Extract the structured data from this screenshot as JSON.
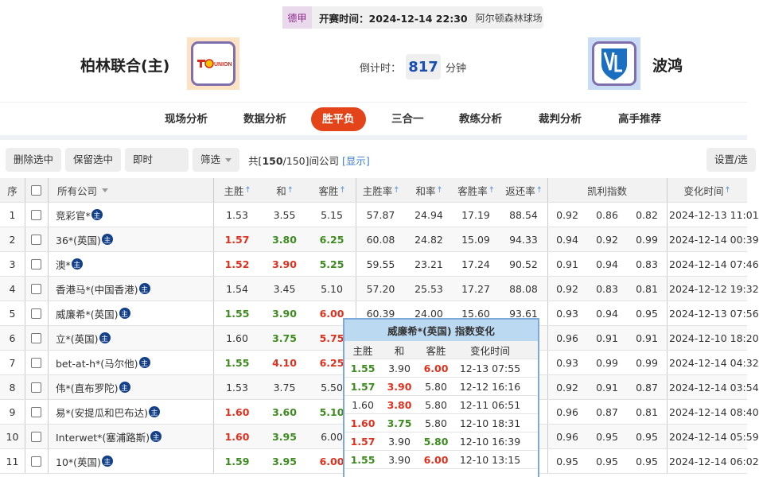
{
  "match": {
    "league": "德甲",
    "start_time": "开赛时间：2024-12-14 22:30",
    "venue": "阿尔顿森林球场",
    "home_team": "柏林联合(主)",
    "away_team": "波鸿",
    "countdown_label": "倒计时：",
    "countdown_value": "817",
    "countdown_unit": "分钟",
    "home_logo_text": "UNION",
    "away_logo_text": "VfL"
  },
  "nav": {
    "items": [
      "现场分析",
      "数据分析",
      "胜平负",
      "三合一",
      "教练分析",
      "裁判分析",
      "高手推荐"
    ],
    "active": "胜平负"
  },
  "toolbar": {
    "delete_selected": "删除选中",
    "keep_selected": "保留选中",
    "mode_select": "即时",
    "filter": "筛选",
    "count_prefix": "共[",
    "count_shown": "150",
    "count_total": "/150]间公司",
    "show_link": "[显示]",
    "settings": "设置/选"
  },
  "table": {
    "headers": {
      "index": "序",
      "company": "所有公司",
      "home": "主胜",
      "draw": "和",
      "away": "客胜",
      "home_rate": "主胜率",
      "draw_rate": "和率",
      "away_rate": "客胜率",
      "return_rate": "返还率",
      "kelly": "凯利指数",
      "change_time": "变化时间"
    },
    "badge": "主",
    "colors": {
      "up": "#e0301e",
      "down": "#3d8c1f"
    },
    "rows": [
      {
        "idx": "1",
        "company": "竞彩官*",
        "odds": [
          [
            "1.53",
            ""
          ],
          [
            "3.55",
            ""
          ],
          [
            "5.15",
            ""
          ]
        ],
        "rates": [
          "57.87",
          "24.94",
          "17.19",
          "88.54"
        ],
        "kelly": [
          "0.92",
          "0.86",
          "0.82"
        ],
        "time": "2024-12-13 11:01"
      },
      {
        "idx": "2",
        "company": "36*(英国)",
        "odds": [
          [
            "1.57",
            "r"
          ],
          [
            "3.80",
            "g"
          ],
          [
            "6.25",
            "g"
          ]
        ],
        "rates": [
          "60.08",
          "24.82",
          "15.09",
          "94.33"
        ],
        "kelly": [
          "0.94",
          "0.92",
          "0.99"
        ],
        "time": "2024-12-14 00:39"
      },
      {
        "idx": "3",
        "company": "澳*",
        "odds": [
          [
            "1.52",
            "r"
          ],
          [
            "3.90",
            "r"
          ],
          [
            "5.25",
            "g"
          ]
        ],
        "rates": [
          "59.55",
          "23.21",
          "17.24",
          "90.52"
        ],
        "kelly": [
          "0.91",
          "0.94",
          "0.83"
        ],
        "time": "2024-12-14 07:46"
      },
      {
        "idx": "4",
        "company": "香港马*(中国香港)",
        "odds": [
          [
            "1.54",
            ""
          ],
          [
            "3.45",
            ""
          ],
          [
            "5.10",
            ""
          ]
        ],
        "rates": [
          "57.20",
          "25.53",
          "17.27",
          "88.08"
        ],
        "kelly": [
          "0.92",
          "0.83",
          "0.81"
        ],
        "time": "2024-12-12 19:32"
      },
      {
        "idx": "5",
        "company": "威廉希*(英国)",
        "odds": [
          [
            "1.55",
            "g"
          ],
          [
            "3.90",
            "g"
          ],
          [
            "6.00",
            "r"
          ]
        ],
        "rates": [
          "60.39",
          "24.00",
          "15.60",
          "93.61"
        ],
        "kelly": [
          "0.93",
          "0.94",
          "0.95"
        ],
        "time": "2024-12-13 07:56"
      },
      {
        "idx": "6",
        "company": "立*(英国)",
        "odds": [
          [
            "1.60",
            ""
          ],
          [
            "3.75",
            "g"
          ],
          [
            "5.75",
            "r"
          ]
        ],
        "rates": [],
        "kelly": [
          "0.96",
          "0.91",
          "0.91"
        ],
        "time": "2024-12-10 18:20"
      },
      {
        "idx": "7",
        "company": "bet-at-h*(马尔他)",
        "odds": [
          [
            "1.55",
            "g"
          ],
          [
            "4.10",
            "r"
          ],
          [
            "6.25",
            "r"
          ]
        ],
        "rates": [],
        "kelly": [
          "0.93",
          "0.99",
          "0.99"
        ],
        "time": "2024-12-14 04:32"
      },
      {
        "idx": "8",
        "company": "伟*(直布罗陀)",
        "odds": [
          [
            "1.53",
            ""
          ],
          [
            "3.75",
            ""
          ],
          [
            "5.50",
            ""
          ]
        ],
        "rates": [],
        "kelly": [
          "0.92",
          "0.91",
          "0.87"
        ],
        "time": "2024-12-14 03:54"
      },
      {
        "idx": "9",
        "company": "易*(安提瓜和巴布达)",
        "odds": [
          [
            "1.60",
            "r"
          ],
          [
            "3.60",
            "g"
          ],
          [
            "5.10",
            "g"
          ]
        ],
        "rates": [],
        "kelly": [
          "0.96",
          "0.87",
          "0.81"
        ],
        "time": "2024-12-14 08:40"
      },
      {
        "idx": "10",
        "company": "Interwet*(塞浦路斯)",
        "odds": [
          [
            "1.60",
            "r"
          ],
          [
            "3.95",
            "g"
          ],
          [
            "6.00",
            ""
          ]
        ],
        "rates": [],
        "kelly": [
          "0.96",
          "0.95",
          "0.95"
        ],
        "time": "2024-12-14 05:59"
      },
      {
        "idx": "11",
        "company": "10*(英国)",
        "odds": [
          [
            "1.59",
            "g"
          ],
          [
            "3.95",
            "g"
          ],
          [
            "6.00",
            "r"
          ]
        ],
        "rates": [],
        "kelly": [
          "0.95",
          "0.95",
          "0.95"
        ],
        "time": "2024-12-14 06:02"
      }
    ]
  },
  "popup": {
    "title": "威廉希*(英国) 指数变化",
    "headers": [
      "主胜",
      "和",
      "客胜",
      "变化时间"
    ],
    "rows": [
      [
        [
          "1.55",
          "g"
        ],
        [
          "3.90",
          ""
        ],
        [
          "6.00",
          "r"
        ],
        "12-13 07:55"
      ],
      [
        [
          "1.57",
          "g"
        ],
        [
          "3.90",
          "r"
        ],
        [
          "5.80",
          ""
        ],
        "12-12 16:16"
      ],
      [
        [
          "1.60",
          ""
        ],
        [
          "3.80",
          "r"
        ],
        [
          "5.80",
          ""
        ],
        "12-11 06:51"
      ],
      [
        [
          "1.60",
          "r"
        ],
        [
          "3.75",
          "g"
        ],
        [
          "5.80",
          ""
        ],
        "12-10 18:31"
      ],
      [
        [
          "1.57",
          "r"
        ],
        [
          "3.90",
          ""
        ],
        [
          "5.80",
          "g"
        ],
        "12-10 16:39"
      ],
      [
        [
          "1.55",
          "g"
        ],
        [
          "3.90",
          ""
        ],
        [
          "6.00",
          "r"
        ],
        "12-10 13:15"
      ]
    ]
  }
}
